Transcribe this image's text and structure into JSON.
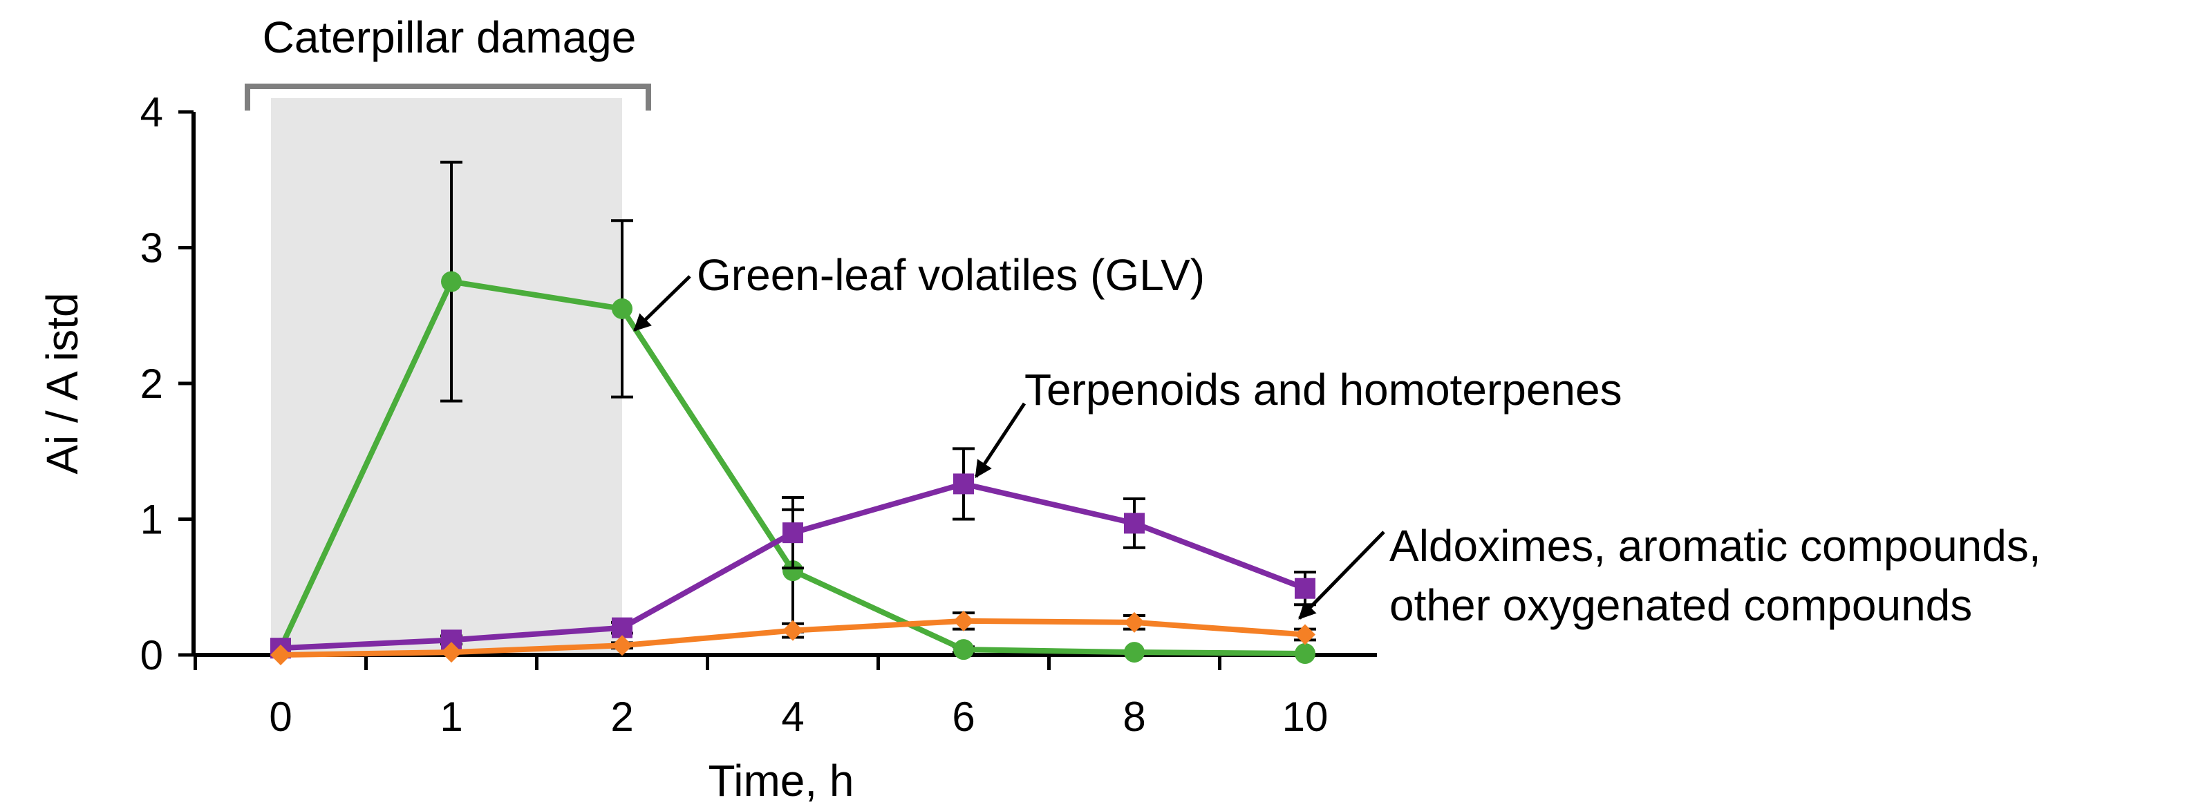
{
  "chart_data": {
    "type": "line",
    "title": "",
    "xlabel": "Time, h",
    "ylabel": "Ai / A istd",
    "categories": [
      "0",
      "1",
      "2",
      "4",
      "6",
      "8",
      "10"
    ],
    "ylim": [
      0,
      4
    ],
    "yticks": [
      0,
      1,
      2,
      3,
      4
    ],
    "grid": false,
    "legend": "none (direct labels)",
    "shaded_region": {
      "from": "0",
      "to": "2",
      "label": "Caterpillar damage",
      "color": "#e6e6e6"
    },
    "series": [
      {
        "name": "Green-leaf volatiles (GLV)",
        "color": "#4aad3b",
        "marker": "circle",
        "values": [
          0.05,
          2.75,
          2.55,
          0.62,
          0.04,
          0.02,
          0.01
        ],
        "error": [
          0,
          0.88,
          0.65,
          0.45,
          0.02,
          0.01,
          0.01
        ]
      },
      {
        "name": "Terpenoids and homoterpenes",
        "color": "#7f2aa3",
        "marker": "square",
        "values": [
          0.05,
          0.11,
          0.2,
          0.9,
          1.26,
          0.97,
          0.49
        ],
        "error": [
          0.01,
          0.03,
          0.04,
          0.26,
          0.26,
          0.18,
          0.12
        ]
      },
      {
        "name": "Aldoximes, aromatic compounds, other oxygenated compounds",
        "label_lines": [
          "Aldoximes, aromatic compounds,",
          "other oxygenated compounds"
        ],
        "color": "#f58025",
        "marker": "diamond",
        "values": [
          0.0,
          0.02,
          0.07,
          0.18,
          0.25,
          0.24,
          0.15
        ],
        "error": [
          0,
          0.01,
          0.02,
          0.05,
          0.06,
          0.05,
          0.04
        ]
      }
    ]
  }
}
